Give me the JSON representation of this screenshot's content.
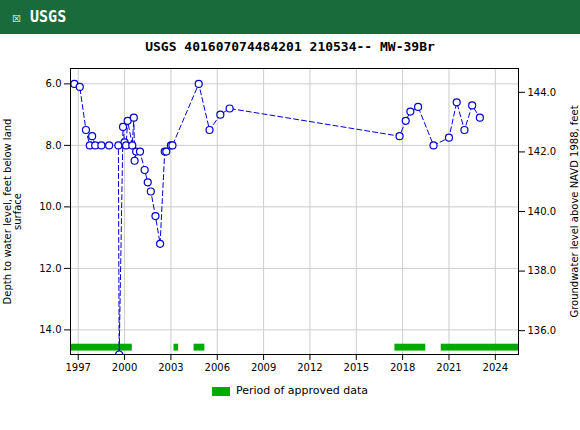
{
  "chart_data": {
    "type": "line",
    "title": "USGS 401607074484201 210534-- MW-39Br",
    "annotations": [
      {
        "text": "☒ USGS",
        "color": "#1a6b3c"
      }
    ],
    "ylabel": "Depth to water level, feet below land\nsurface",
    "y2label": "Groundwater level above NAVD 1988, feet",
    "x": [
      1996.75,
      1997.1,
      1997.5,
      1997.75,
      1997.9,
      1998.1,
      1998.5,
      1999.0,
      1999.6,
      1999.65,
      1999.9,
      2000.0,
      2000.1,
      2000.2,
      2000.5,
      2000.6,
      2000.65,
      2000.75,
      2001.0,
      2001.3,
      2001.5,
      2001.7,
      2002.0,
      2002.3,
      2002.6,
      2002.7,
      2003.0,
      2003.1,
      2004.8,
      2005.5,
      2006.2,
      2006.8,
      2017.8,
      2018.2,
      2018.5,
      2019.0,
      2020.0,
      2021.0,
      2021.5,
      2022.0,
      2022.5,
      2023.0
    ],
    "values": [
      6.0,
      6.1,
      7.5,
      8.0,
      7.7,
      8.0,
      8.0,
      8.0,
      8.0,
      14.8,
      7.4,
      7.9,
      8.0,
      7.2,
      8.0,
      7.1,
      8.5,
      8.2,
      8.2,
      8.8,
      9.2,
      9.5,
      10.3,
      11.2,
      8.2,
      8.2,
      8.0,
      8.0,
      6.0,
      7.5,
      7.0,
      6.8,
      7.7,
      7.2,
      6.9,
      6.75,
      8.0,
      7.75,
      6.6,
      7.5,
      6.7,
      7.1
    ],
    "color": "#0000cc",
    "marker": "circle",
    "line_style": "dashed",
    "approved_periods": {
      "name": "Period of approved data",
      "color": "#00aa00",
      "ranges": [
        [
          1996.5,
          2000.5
        ],
        [
          2003.2,
          2003.5
        ],
        [
          2004.5,
          2005.2
        ],
        [
          2017.5,
          2019.5
        ],
        [
          2020.5,
          2025.5
        ]
      ]
    },
    "xlim": [
      1996.5,
      2025.5
    ],
    "xticks": [
      1997,
      2000,
      2003,
      2006,
      2009,
      2012,
      2015,
      2018,
      2021,
      2024
    ],
    "ylim": [
      14.8,
      5.5
    ],
    "yticks": [
      {
        "value": 6.0,
        "label": "6.0"
      },
      {
        "value": 8.0,
        "label": "8.0"
      },
      {
        "value": 10.0,
        "label": "10.0"
      },
      {
        "value": 12.0,
        "label": "12.0"
      },
      {
        "value": 14.0,
        "label": "14.0"
      }
    ],
    "y2lim": [
      135.2,
      144.8
    ],
    "y2ticks": [
      {
        "value": 136.0,
        "label": "136.0"
      },
      {
        "value": 138.0,
        "label": "138.0"
      },
      {
        "value": 140.0,
        "label": "140.0"
      },
      {
        "value": 142.0,
        "label": "142.0"
      },
      {
        "value": 144.0,
        "label": "144.0"
      }
    ],
    "grid": true,
    "legend": "bottom"
  }
}
